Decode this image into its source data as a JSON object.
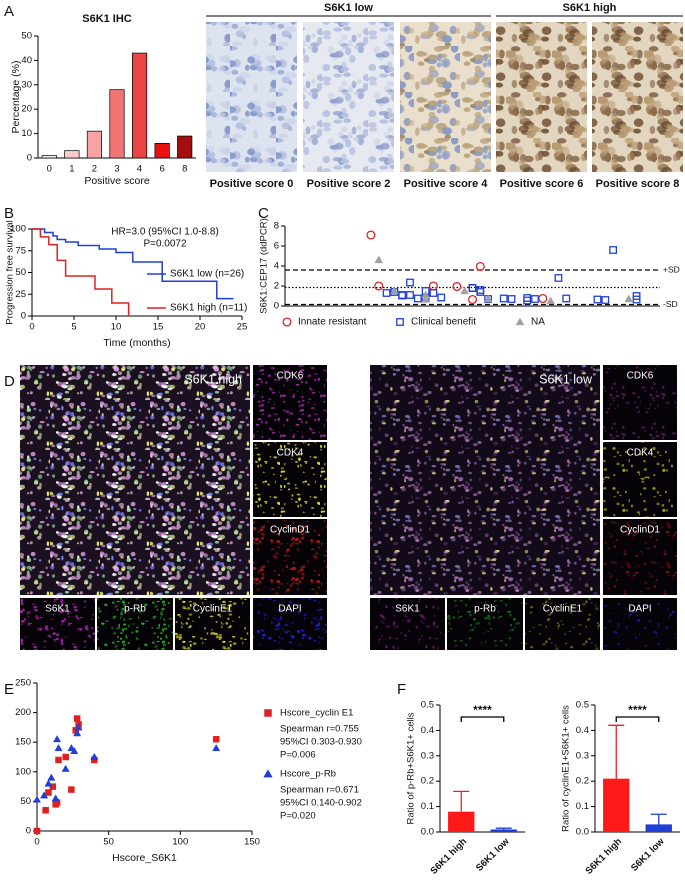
{
  "panel_labels": [
    "A",
    "B",
    "C",
    "D",
    "E",
    "F"
  ],
  "ihc": {
    "groups": [
      "S6K1 low",
      "S6K1 high"
    ],
    "captions": [
      "Positive score 0",
      "Positive score 2",
      "Positive score 4",
      "Positive score 6",
      "Positive score 8"
    ]
  },
  "immunofluorescence": [
    {
      "title": "S6K1 high",
      "channels": [
        "CDK6",
        "CDK4",
        "CyclinD1",
        "S6K1",
        "p-Rb",
        "CyclinE1",
        "DAPI"
      ]
    },
    {
      "title": "S6K1 low",
      "channels": [
        "CDK6",
        "CDK4",
        "CyclinD1",
        "S6K1",
        "p-Rb",
        "CyclinE1",
        "DAPI"
      ]
    }
  ],
  "chart_data": [
    {
      "type": "bar",
      "title": "S6K1 IHC",
      "x_label": "Positive score",
      "y_label": "Percentage (%)",
      "categories": [
        "0",
        "1",
        "2",
        "3",
        "4",
        "6",
        "8"
      ],
      "values": [
        1,
        3,
        11,
        28,
        43,
        6,
        9
      ],
      "colors": [
        "#fde6e6",
        "#fbcaca",
        "#f6a3a3",
        "#f07474",
        "#ea4545",
        "#e81010",
        "#a30d0d"
      ],
      "ylim": [
        0,
        50
      ],
      "yticks": [
        0,
        10,
        20,
        30,
        40,
        50
      ]
    },
    {
      "type": "step",
      "x_label": "Time (months)",
      "y_label": "Progression free survival",
      "annotations": [
        "HR=3.0 (95%CI 1.0-8.8)",
        "P=0.0072"
      ],
      "xlim": [
        0,
        25
      ],
      "xticks": [
        0,
        5,
        10,
        15,
        20,
        25
      ],
      "ylim": [
        0,
        100
      ],
      "yticks": [
        0,
        25,
        50,
        75,
        100
      ],
      "series": [
        {
          "name": "S6K1 low (n=26)",
          "color": "#1f3fd6",
          "x": [
            0,
            1.5,
            2.5,
            3,
            4,
            5.5,
            8,
            10,
            12,
            15.5,
            22,
            24
          ],
          "values": [
            100,
            96,
            92,
            88,
            85,
            81,
            77,
            73,
            62,
            40,
            20,
            20
          ]
        },
        {
          "name": "S6K1 high (n=11)",
          "color": "#e02020",
          "x": [
            0,
            1,
            2,
            3,
            4,
            7.5,
            9.5,
            11.5
          ],
          "values": [
            100,
            91,
            82,
            64,
            46,
            31,
            15,
            0
          ]
        }
      ]
    },
    {
      "type": "scatter",
      "y_label": "S6K1:CEP17 (ddPCR)",
      "xlim": [
        0,
        48
      ],
      "ylim": [
        0,
        8
      ],
      "yticks": [
        0,
        2,
        4,
        6,
        8
      ],
      "reference_lines": [
        {
          "value": 3.6,
          "label": "+SD",
          "style": "dashed"
        },
        {
          "value": 1.85,
          "style": "dotted"
        },
        {
          "value": 0.15,
          "label": "-SD",
          "style": "dashed"
        }
      ],
      "series": [
        {
          "name": "Innate resistant",
          "color": "#e02020",
          "marker": "circle",
          "filled": false,
          "x": [
            11,
            12,
            19,
            22,
            24,
            25,
            33
          ],
          "values": [
            7.1,
            2.0,
            2.0,
            1.95,
            0.65,
            3.95,
            0.75
          ]
        },
        {
          "name": "Clinical benefit",
          "color": "#1f3fd6",
          "marker": "square",
          "filled": false,
          "x": [
            13,
            14,
            15,
            15,
            16,
            16,
            17,
            18,
            18,
            19,
            20,
            24,
            24,
            25,
            25,
            26,
            28,
            29,
            31,
            31,
            32,
            35,
            36,
            40,
            41,
            42,
            45,
            45
          ],
          "values": [
            1.3,
            1.4,
            1.05,
            1.1,
            2.35,
            1.1,
            0.75,
            1.5,
            0.8,
            1.3,
            0.85,
            1.8,
            1.8,
            1.6,
            1.4,
            0.7,
            0.75,
            0.7,
            0.55,
            0.8,
            0.7,
            2.8,
            0.75,
            0.65,
            0.6,
            5.6,
            0.65,
            1.0
          ]
        },
        {
          "name": "NA",
          "color": "#a0a0a0",
          "marker": "triangle",
          "filled": true,
          "x": [
            12,
            14,
            18,
            18,
            23,
            26,
            34,
            44
          ],
          "values": [
            4.6,
            1.5,
            1.1,
            0.65,
            1.5,
            0.7,
            0.5,
            0.7
          ]
        }
      ]
    },
    {
      "type": "scatter",
      "x_label": "Hscore_S6K1",
      "xlim": [
        0,
        150
      ],
      "xticks": [
        0,
        50,
        100,
        150
      ],
      "ylim": [
        0,
        250
      ],
      "yticks": [
        0,
        50,
        100,
        150,
        200,
        250
      ],
      "series": [
        {
          "name": "Hscore_cyclin E1",
          "color": "#e02020",
          "marker": "square",
          "filled": true,
          "stats": [
            "Spearman r=0.755",
            "95%CI 0.303-0.930",
            "P=0.006"
          ],
          "x": [
            0,
            6,
            8,
            11,
            13,
            14,
            15,
            20,
            24,
            27,
            28,
            29,
            40,
            125
          ],
          "values": [
            0,
            35,
            65,
            75,
            45,
            48,
            120,
            125,
            70,
            170,
            190,
            180,
            120,
            155
          ]
        },
        {
          "name": "Hscore_p-Rb",
          "color": "#1f3fd6",
          "marker": "triangle",
          "filled": true,
          "stats": [
            "Spearman r=0.671",
            "95%CI 0.140-0.902",
            "P=0.020"
          ],
          "x": [
            0,
            5,
            8,
            10,
            13,
            14,
            15,
            20,
            24,
            26,
            28,
            29,
            40,
            125
          ],
          "values": [
            53,
            60,
            80,
            90,
            55,
            155,
            140,
            105,
            140,
            135,
            165,
            175,
            125,
            140
          ]
        }
      ]
    },
    {
      "type": "bar",
      "y_label": "Ratio of p-Rb+S6K1+ cells",
      "categories": [
        "S6K1 high",
        "S6K1 low"
      ],
      "values": [
        0.08,
        0.01
      ],
      "errors": [
        0.08,
        0.005
      ],
      "colors": [
        "#ff1a1a",
        "#1f3fd6"
      ],
      "ylim": [
        0,
        0.5
      ],
      "yticks": [
        {
          "value": 0,
          "label": "0.0"
        },
        0.1,
        0.2,
        0.3,
        0.4,
        0.5
      ],
      "significance": "****"
    },
    {
      "type": "bar",
      "y_label": "Ratio of cyclinE1+S6K1+ cells",
      "categories": [
        "S6K1 high",
        "S6K1 low"
      ],
      "values": [
        0.21,
        0.03
      ],
      "errors": [
        0.21,
        0.04
      ],
      "colors": [
        "#ff1a1a",
        "#1f3fd6"
      ],
      "ylim": [
        0,
        0.5
      ],
      "yticks": [
        {
          "value": 0,
          "label": "0.0"
        },
        0.1,
        0.2,
        0.3,
        0.4,
        0.5
      ],
      "significance": "****"
    }
  ]
}
